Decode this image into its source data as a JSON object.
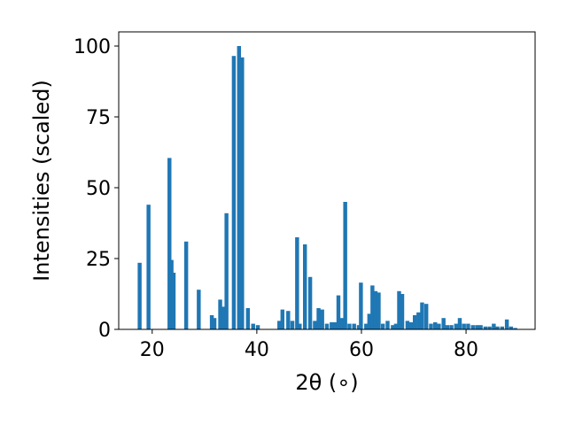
{
  "chart_data": {
    "type": "bar",
    "title": "",
    "xlabel": "2θ (∘)",
    "ylabel": "Intensities (scaled)",
    "xlim": [
      13.6,
      93.2
    ],
    "ylim": [
      0,
      105
    ],
    "xticks": [
      20,
      40,
      60,
      80
    ],
    "yticks": [
      0,
      25,
      50,
      75,
      100
    ],
    "bar_width": 0.75,
    "color": "#1f77b4",
    "grid": false,
    "legend": "none",
    "x": [
      17.6,
      19.3,
      23.3,
      23.7,
      24.1,
      26.5,
      28.9,
      31.4,
      31.9,
      33.0,
      33.6,
      34.2,
      35.6,
      36.6,
      37.2,
      38.3,
      39.3,
      40.2,
      44.3,
      44.9,
      46.0,
      46.8,
      47.7,
      48.2,
      49.2,
      50.2,
      51.1,
      51.8,
      52.5,
      53.4,
      54.3,
      55.0,
      55.6,
      56.2,
      56.9,
      57.7,
      58.6,
      59.5,
      59.9,
      60.9,
      61.5,
      62.1,
      62.7,
      63.3,
      64.1,
      65.0,
      66.0,
      66.6,
      67.2,
      67.8,
      68.8,
      69.5,
      70.2,
      70.9,
      71.6,
      72.4,
      73.3,
      74.1,
      74.8,
      75.7,
      76.4,
      77.2,
      78.1,
      78.8,
      79.6,
      80.4,
      81.3,
      82.1,
      82.8,
      83.7,
      84.5,
      85.3,
      86.0,
      86.9,
      87.8,
      88.6,
      89.4
    ],
    "values": [
      23.5,
      44.0,
      60.5,
      24.5,
      20.0,
      31.0,
      14.0,
      5.0,
      4.0,
      10.5,
      8.0,
      41.0,
      96.5,
      100.0,
      96.0,
      7.5,
      2.0,
      1.5,
      3.0,
      7.0,
      6.5,
      3.0,
      32.5,
      2.0,
      30.0,
      18.5,
      3.0,
      7.5,
      7.0,
      2.0,
      2.5,
      2.5,
      12.0,
      4.0,
      45.0,
      2.0,
      2.0,
      1.5,
      16.5,
      2.0,
      5.5,
      15.5,
      13.5,
      13.0,
      2.0,
      3.0,
      1.5,
      2.0,
      13.5,
      12.5,
      3.0,
      2.5,
      5.0,
      6.0,
      9.5,
      9.0,
      2.0,
      2.5,
      2.0,
      4.0,
      1.5,
      1.5,
      2.0,
      4.0,
      2.0,
      2.0,
      1.5,
      1.5,
      1.5,
      1.0,
      1.0,
      2.0,
      1.0,
      1.0,
      3.5,
      1.0,
      0.5
    ]
  }
}
